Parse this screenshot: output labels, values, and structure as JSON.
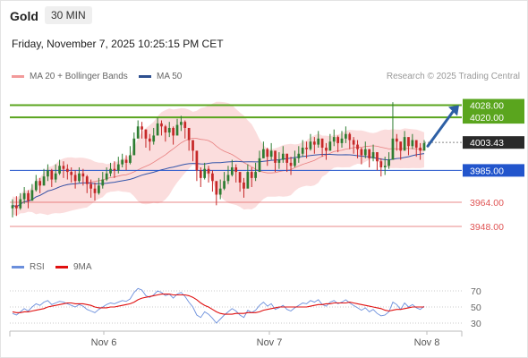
{
  "header": {
    "instrument": "Gold",
    "timeframe": "30 MIN"
  },
  "datetime": "Friday, November 7, 2025 10:25:15 PM CET",
  "legend": {
    "bollinger_label": "MA 20 + Bollinger Bands",
    "ma50_label": "MA 50",
    "rsi_label": "RSI",
    "rsi_ma_label": "9MA"
  },
  "credit": "Research © 2025 Trading Central",
  "colors": {
    "resistance": "#5aa51e",
    "pivot": "#2255cc",
    "support": "#e05555",
    "current_price_tag": "#2a2a2a",
    "bullish_candle": "#2e7d32",
    "bearish_candle": "#c62828",
    "bollinger": "#f7b3b3",
    "ma20": "#e88080",
    "ma50": "#3355aa",
    "arrow": "#2d5fa5",
    "rsi": "#6b8fdc",
    "rsi_ma": "#e01010"
  },
  "chart_data": [
    {
      "type": "candlestick",
      "title": "Gold",
      "x_labels": [
        "Nov 6",
        "Nov 7",
        "Nov 8"
      ],
      "ylim": [
        3938,
        4036
      ],
      "levels": [
        {
          "value": 4028.0,
          "label": "4028.00",
          "kind": "resistance"
        },
        {
          "value": 4020.0,
          "label": "4020.00",
          "kind": "resistance"
        },
        {
          "value": 4003.43,
          "label": "4003.43",
          "kind": "current"
        },
        {
          "value": 3985.0,
          "label": "3985.00",
          "kind": "pivot"
        },
        {
          "value": 3964.0,
          "label": "3964.00",
          "kind": "support"
        },
        {
          "value": 3948.0,
          "label": "3948.00",
          "kind": "support"
        }
      ],
      "target_arrow": {
        "from": 4001,
        "to": 4028
      },
      "indicators": [
        "MA 20 + Bollinger Bands",
        "MA 50"
      ],
      "closes": [
        3962,
        3960,
        3966,
        3970,
        3965,
        3972,
        3978,
        3975,
        3981,
        3985,
        3979,
        3983,
        3988,
        3986,
        3984,
        3982,
        3978,
        3983,
        3981,
        3976,
        3973,
        3970,
        3975,
        3979,
        3983,
        3986,
        3985,
        3989,
        3992,
        3990,
        3995,
        4006,
        4014,
        4012,
        4006,
        4004,
        4008,
        4016,
        4014,
        4010,
        4013,
        4008,
        4015,
        4017,
        4013,
        4005,
        3998,
        3985,
        3980,
        3986,
        3983,
        3978,
        3969,
        3973,
        3978,
        3982,
        3987,
        3984,
        3977,
        3973,
        3984,
        3980,
        3984,
        3993,
        3999,
        3994,
        3998,
        3990,
        3992,
        3996,
        3990,
        3988,
        3993,
        3996,
        4000,
        3999,
        4004,
        4002,
        4006,
        4000,
        3998,
        4004,
        4007,
        4003,
        4006,
        4009,
        4005,
        4002,
        3999,
        3995,
        3999,
        3993,
        3997,
        3991,
        3987,
        3988,
        3992,
        4006,
        4004,
        3998,
        4007,
        4001,
        4005,
        4000,
        3998,
        4003
      ],
      "highs": [
        3966,
        3968,
        3970,
        3974,
        3972,
        3976,
        3982,
        3980,
        3986,
        3989,
        3986,
        3989,
        3992,
        3991,
        3989,
        3987,
        3985,
        3987,
        3986,
        3982,
        3979,
        3977,
        3980,
        3984,
        3987,
        3990,
        3991,
        3994,
        3996,
        3995,
        4001,
        4010,
        4018,
        4017,
        4012,
        4009,
        4013,
        4020,
        4018,
        4015,
        4017,
        4014,
        4019,
        4021,
        4018,
        4012,
        4004,
        3993,
        3987,
        3990,
        3988,
        3985,
        3976,
        3979,
        3984,
        3988,
        3992,
        3989,
        3983,
        3980,
        3989,
        3987,
        3990,
        3998,
        4004,
        4000,
        4003,
        3996,
        3997,
        4001,
        3996,
        3994,
        3998,
        4001,
        4005,
        4004,
        4009,
        4007,
        4011,
        4006,
        4003,
        4009,
        4012,
        4008,
        4011,
        4014,
        4010,
        4007,
        4005,
        4000,
        4004,
        3999,
        4002,
        3997,
        3993,
        3994,
        3997,
        4030,
        4009,
        4004,
        4011,
        4006,
        4009,
        4005,
        4003,
        4005
      ],
      "lows": [
        3954,
        3955,
        3959,
        3963,
        3960,
        3965,
        3971,
        3970,
        3975,
        3978,
        3974,
        3977,
        3982,
        3980,
        3979,
        3977,
        3973,
        3977,
        3975,
        3970,
        3967,
        3965,
        3969,
        3973,
        3978,
        3981,
        3980,
        3983,
        3987,
        3985,
        3989,
        3999,
        4008,
        4006,
        4000,
        3998,
        4002,
        4010,
        4008,
        4004,
        4007,
        4002,
        4009,
        4011,
        4006,
        3998,
        3991,
        3978,
        3974,
        3979,
        3977,
        3971,
        3962,
        3966,
        3972,
        3976,
        3981,
        3977,
        3971,
        3967,
        3977,
        3974,
        3978,
        3987,
        3993,
        3988,
        3992,
        3984,
        3986,
        3990,
        3984,
        3982,
        3987,
        3990,
        3994,
        3993,
        3998,
        3996,
        4000,
        3994,
        3992,
        3998,
        4001,
        3997,
        4000,
        4003,
        3999,
        3996,
        3993,
        3989,
        3993,
        3987,
        3991,
        3985,
        3981,
        3982,
        3986,
        3995,
        3998,
        3992,
        4001,
        3995,
        3999,
        3994,
        3992,
        3999
      ]
    },
    {
      "type": "line",
      "title": "RSI",
      "series": [
        {
          "name": "RSI"
        },
        {
          "name": "9MA"
        }
      ],
      "y_ticks": [
        70,
        50,
        30
      ],
      "ylim": [
        20,
        80
      ],
      "rsi": [
        42,
        40,
        44,
        48,
        45,
        50,
        54,
        52,
        56,
        58,
        53,
        55,
        57,
        56,
        54,
        52,
        50,
        53,
        51,
        47,
        45,
        43,
        47,
        50,
        53,
        55,
        54,
        56,
        58,
        57,
        60,
        68,
        73,
        71,
        64,
        62,
        65,
        70,
        68,
        64,
        66,
        61,
        66,
        68,
        63,
        56,
        50,
        40,
        37,
        44,
        41,
        36,
        30,
        35,
        40,
        44,
        48,
        45,
        40,
        37,
        46,
        43,
        46,
        52,
        56,
        51,
        54,
        47,
        49,
        52,
        47,
        45,
        49,
        52,
        55,
        54,
        58,
        56,
        59,
        53,
        51,
        56,
        58,
        54,
        56,
        59,
        55,
        52,
        49,
        46,
        49,
        44,
        47,
        42,
        39,
        40,
        44,
        56,
        53,
        47,
        55,
        50,
        53,
        49,
        47,
        51
      ],
      "rsi_ma": [
        44,
        43,
        43,
        44,
        44,
        45,
        46,
        47,
        48,
        50,
        51,
        52,
        53,
        54,
        55,
        55,
        54,
        54,
        54,
        53,
        52,
        50,
        49,
        49,
        49,
        50,
        50,
        51,
        52,
        53,
        54,
        56,
        59,
        61,
        62,
        63,
        64,
        65,
        66,
        66,
        66,
        65,
        65,
        65,
        65,
        64,
        62,
        59,
        55,
        52,
        50,
        47,
        44,
        42,
        41,
        41,
        41,
        42,
        42,
        42,
        43,
        43,
        43,
        44,
        46,
        47,
        48,
        49,
        50,
        50,
        50,
        50,
        50,
        50,
        50,
        50,
        51,
        52,
        53,
        53,
        54,
        54,
        55,
        55,
        55,
        55,
        56,
        55,
        54,
        53,
        52,
        51,
        50,
        49,
        48,
        46,
        45,
        46,
        47,
        47,
        48,
        49,
        50,
        50,
        50,
        50
      ]
    }
  ]
}
